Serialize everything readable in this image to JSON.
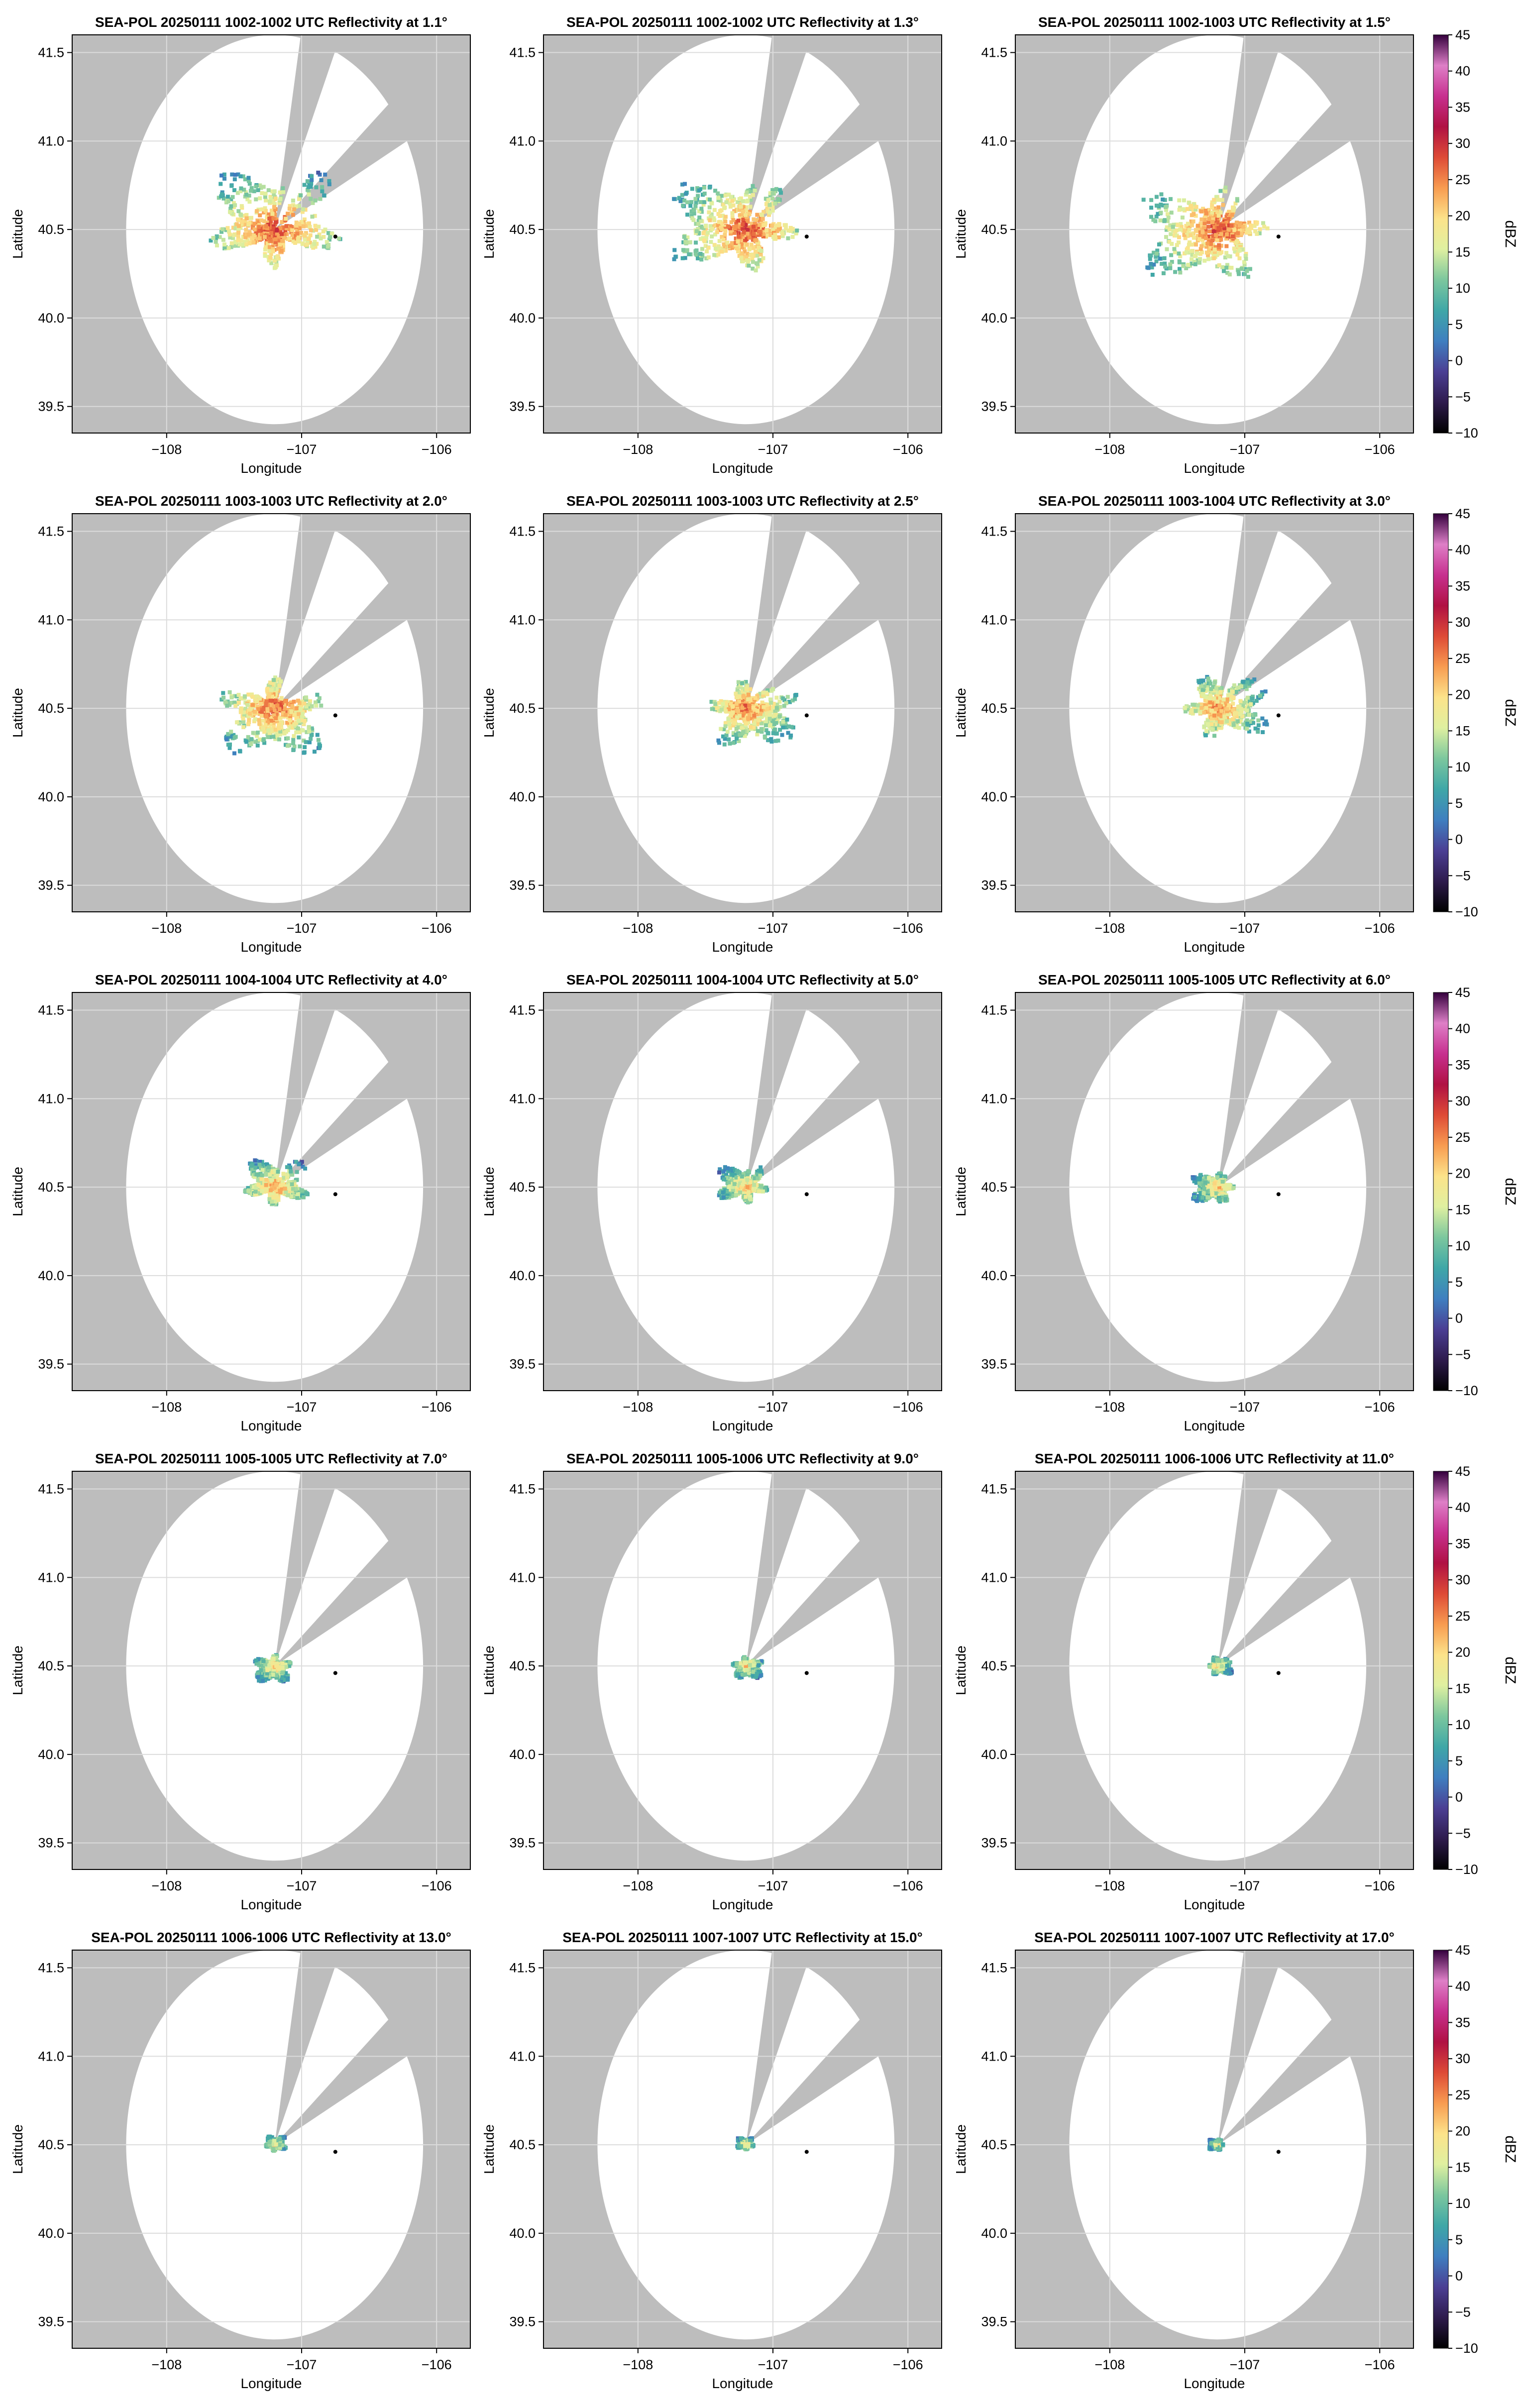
{
  "colors": {
    "no_data": "#bdbdbd",
    "in_range": "#ffffff",
    "grid": "#dcdcdc",
    "site_marker": "#000000"
  },
  "chart_data": {
    "type": "heatmap",
    "layout": "5 rows x 3 columns of radar reflectivity maps",
    "xlabel": "Longitude",
    "ylabel": "Latitude",
    "xlim": [
      -108.7,
      -105.75
    ],
    "ylim": [
      39.35,
      41.6
    ],
    "xticks": [
      -108,
      -107,
      -106
    ],
    "xtick_labels": [
      "−108",
      "−107",
      "−106"
    ],
    "yticks": [
      39.5,
      40.0,
      40.5,
      41.0,
      41.5
    ],
    "ytick_labels": [
      "39.5",
      "40.0",
      "40.5",
      "41.0",
      "41.5"
    ],
    "grid": true,
    "radar_site": {
      "lon": -107.2,
      "lat": 40.5
    },
    "range_ring_radius_deg": 1.1,
    "blocked_sectors_deg": [
      [
        10,
        24
      ],
      [
        50,
        63
      ]
    ],
    "site_marker": {
      "lon": -106.75,
      "lat": 40.46
    },
    "colorbar": {
      "label": "dBZ",
      "min": -10,
      "max": 45,
      "ticks": [
        -10,
        -5,
        0,
        5,
        10,
        15,
        20,
        25,
        30,
        35,
        40,
        45
      ],
      "tick_labels": [
        "−10",
        "−5",
        "0",
        "5",
        "10",
        "15",
        "20",
        "25",
        "30",
        "35",
        "40",
        "45"
      ],
      "colormap": "spectral",
      "stops": [
        "#000000",
        "#2e1b4d",
        "#4b3f94",
        "#3f7fc0",
        "#3fa7a7",
        "#7cc79e",
        "#dff0a0",
        "#fce38a",
        "#f89c51",
        "#de4b36",
        "#b01143",
        "#c7308f",
        "#de7fc7",
        "#34003d"
      ]
    },
    "panels": [
      {
        "title": "SEA-POL 20250111 1002-1002 UTC Reflectivity at 1.1°",
        "elevation_deg": 1.1,
        "echo_extent_deg": 0.72,
        "max_dbz": 28
      },
      {
        "title": "SEA-POL 20250111 1002-1002 UTC Reflectivity at 1.3°",
        "elevation_deg": 1.3,
        "echo_extent_deg": 0.7,
        "max_dbz": 28
      },
      {
        "title": "SEA-POL 20250111 1002-1003 UTC Reflectivity at 1.5°",
        "elevation_deg": 1.5,
        "echo_extent_deg": 0.7,
        "max_dbz": 28
      },
      {
        "title": "SEA-POL 20250111 1003-1003 UTC Reflectivity at 2.0°",
        "elevation_deg": 2.0,
        "echo_extent_deg": 0.58,
        "max_dbz": 27
      },
      {
        "title": "SEA-POL 20250111 1003-1003 UTC Reflectivity at 2.5°",
        "elevation_deg": 2.5,
        "echo_extent_deg": 0.5,
        "max_dbz": 26
      },
      {
        "title": "SEA-POL 20250111 1003-1004 UTC Reflectivity at 3.0°",
        "elevation_deg": 3.0,
        "echo_extent_deg": 0.46,
        "max_dbz": 25
      },
      {
        "title": "SEA-POL 20250111 1004-1004 UTC Reflectivity at 4.0°",
        "elevation_deg": 4.0,
        "echo_extent_deg": 0.34,
        "max_dbz": 24
      },
      {
        "title": "SEA-POL 20250111 1004-1004 UTC Reflectivity at 5.0°",
        "elevation_deg": 5.0,
        "echo_extent_deg": 0.27,
        "max_dbz": 22
      },
      {
        "title": "SEA-POL 20250111 1005-1005 UTC Reflectivity at 6.0°",
        "elevation_deg": 6.0,
        "echo_extent_deg": 0.23,
        "max_dbz": 21
      },
      {
        "title": "SEA-POL 20250111 1005-1005 UTC Reflectivity at 7.0°",
        "elevation_deg": 7.0,
        "echo_extent_deg": 0.2,
        "max_dbz": 21
      },
      {
        "title": "SEA-POL 20250111 1005-1006 UTC Reflectivity at 9.0°",
        "elevation_deg": 9.0,
        "echo_extent_deg": 0.16,
        "max_dbz": 20
      },
      {
        "title": "SEA-POL 20250111 1006-1006 UTC Reflectivity at 11.0°",
        "elevation_deg": 11.0,
        "echo_extent_deg": 0.13,
        "max_dbz": 20
      },
      {
        "title": "SEA-POL 20250111 1006-1006 UTC Reflectivity at 13.0°",
        "elevation_deg": 13.0,
        "echo_extent_deg": 0.11,
        "max_dbz": 19
      },
      {
        "title": "SEA-POL 20250111 1007-1007 UTC Reflectivity at 15.0°",
        "elevation_deg": 15.0,
        "echo_extent_deg": 0.09,
        "max_dbz": 19
      },
      {
        "title": "SEA-POL 20250111 1007-1007 UTC Reflectivity at 17.0°",
        "elevation_deg": 17.0,
        "echo_extent_deg": 0.08,
        "max_dbz": 18
      }
    ]
  }
}
